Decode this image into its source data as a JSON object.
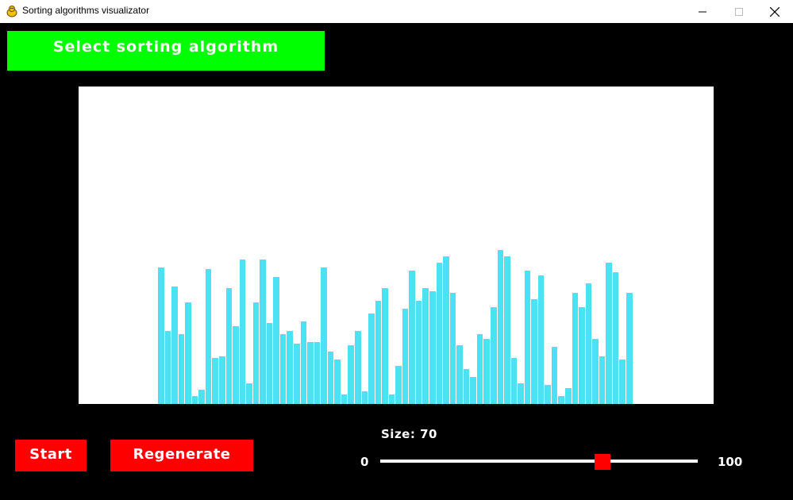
{
  "window": {
    "title": "Sorting algorithms visualizator",
    "icons": {
      "app": "pygame-snake-icon",
      "minimize": "minimize-icon",
      "maximize": "maximize-icon",
      "close": "close-icon"
    }
  },
  "select_button_label": "Select sorting algorithm",
  "start_button_label": "Start",
  "regenerate_button_label": "Regenerate",
  "size": {
    "label": "Size: 70",
    "value": 70,
    "min_label": "0",
    "max_label": "100",
    "min": 0,
    "max": 100
  },
  "colors": {
    "background": "#000000",
    "select_button": "#00ff00",
    "action_buttons": "#ff0000",
    "bars": "#4be3f3",
    "plot_background": "#ffffff",
    "slider_thumb": "#ff0000"
  },
  "chart_data": {
    "type": "bar",
    "ylim": [
      0,
      400
    ],
    "values": [
      172,
      92,
      148,
      88,
      128,
      10,
      18,
      170,
      58,
      60,
      146,
      98,
      182,
      26,
      128,
      182,
      102,
      160,
      88,
      92,
      76,
      104,
      78,
      78,
      172,
      66,
      56,
      12,
      74,
      92,
      16,
      114,
      130,
      146,
      12,
      48,
      120,
      168,
      130,
      146,
      142,
      178,
      186,
      140,
      74,
      44,
      34,
      88,
      82,
      122,
      194,
      186,
      58,
      26,
      168,
      132,
      162,
      24,
      72,
      10,
      20,
      140,
      122,
      152,
      82,
      60,
      178,
      166,
      56,
      140
    ]
  }
}
